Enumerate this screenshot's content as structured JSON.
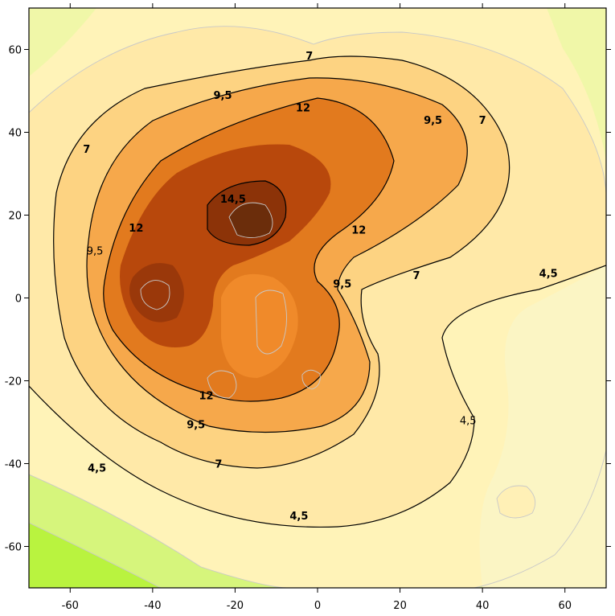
{
  "chart_data": {
    "type": "contour",
    "title": "",
    "xlabel": "",
    "ylabel": "",
    "xlim": [
      -70,
      70
    ],
    "ylim": [
      -70,
      70
    ],
    "x_ticks": [
      -60,
      -40,
      -20,
      0,
      20,
      40,
      60
    ],
    "y_ticks": [
      -60,
      -40,
      -20,
      0,
      20,
      40,
      60
    ],
    "x_tick_labels": [
      "-60",
      "-40",
      "-20",
      "0",
      "20",
      "40",
      "60"
    ],
    "y_tick_labels": [
      "-60",
      "-40",
      "-20",
      "0",
      "20",
      "40",
      "60"
    ],
    "contour_levels_labeled": [
      4.5,
      7,
      9.5,
      12,
      14.5
    ],
    "contour_labels": [
      {
        "text": "7",
        "x": -2,
        "y": 58.5,
        "bold": true
      },
      {
        "text": "9,5",
        "x": -23,
        "y": 49,
        "bold": true
      },
      {
        "text": "12",
        "x": -3.5,
        "y": 46,
        "bold": true
      },
      {
        "text": "9,5",
        "x": 28,
        "y": 43,
        "bold": true
      },
      {
        "text": "7",
        "x": 40,
        "y": 43,
        "bold": true
      },
      {
        "text": "7",
        "x": -56,
        "y": 36,
        "bold": true
      },
      {
        "text": "14,5",
        "x": -20.5,
        "y": 24,
        "bold": true
      },
      {
        "text": "12",
        "x": -44,
        "y": 17,
        "bold": true
      },
      {
        "text": "12",
        "x": 10,
        "y": 16.5,
        "bold": true
      },
      {
        "text": "9,5",
        "x": -54,
        "y": 11.5,
        "bold": false
      },
      {
        "text": "9,5",
        "x": 6,
        "y": 3.5,
        "bold": true
      },
      {
        "text": "7",
        "x": 24,
        "y": 5.5,
        "bold": true
      },
      {
        "text": "4,5",
        "x": 56,
        "y": 6,
        "bold": true
      },
      {
        "text": "12",
        "x": -27,
        "y": -23.5,
        "bold": true
      },
      {
        "text": "9,5",
        "x": -29.5,
        "y": -30.5,
        "bold": true
      },
      {
        "text": "4,5",
        "x": 36.5,
        "y": -29.5,
        "bold": false
      },
      {
        "text": "7",
        "x": -24,
        "y": -40,
        "bold": true
      },
      {
        "text": "4,5",
        "x": -53.5,
        "y": -41,
        "bold": true
      },
      {
        "text": "4,5",
        "x": -4.5,
        "y": -52.5,
        "bold": true
      }
    ],
    "peaks": [
      {
        "x": -15,
        "y": 19,
        "value": 15.5
      },
      {
        "x": -40,
        "y": 0,
        "value": 14.5
      },
      {
        "x": -10,
        "y": -7,
        "value": 11
      }
    ],
    "minimum_region": {
      "x": -70,
      "y": -70
    },
    "grid": false,
    "legend": "none",
    "colors": {
      "lowest": "#b6f53c",
      "low": "#d9f07a",
      "mid_low": "#fff3b8",
      "mid": "#fdd27e",
      "mid_high": "#f39e42",
      "high": "#d96b13",
      "highest": "#6e2e0a",
      "minor_contour_line": "#bdbdbd",
      "major_contour_line": "#000000"
    }
  }
}
